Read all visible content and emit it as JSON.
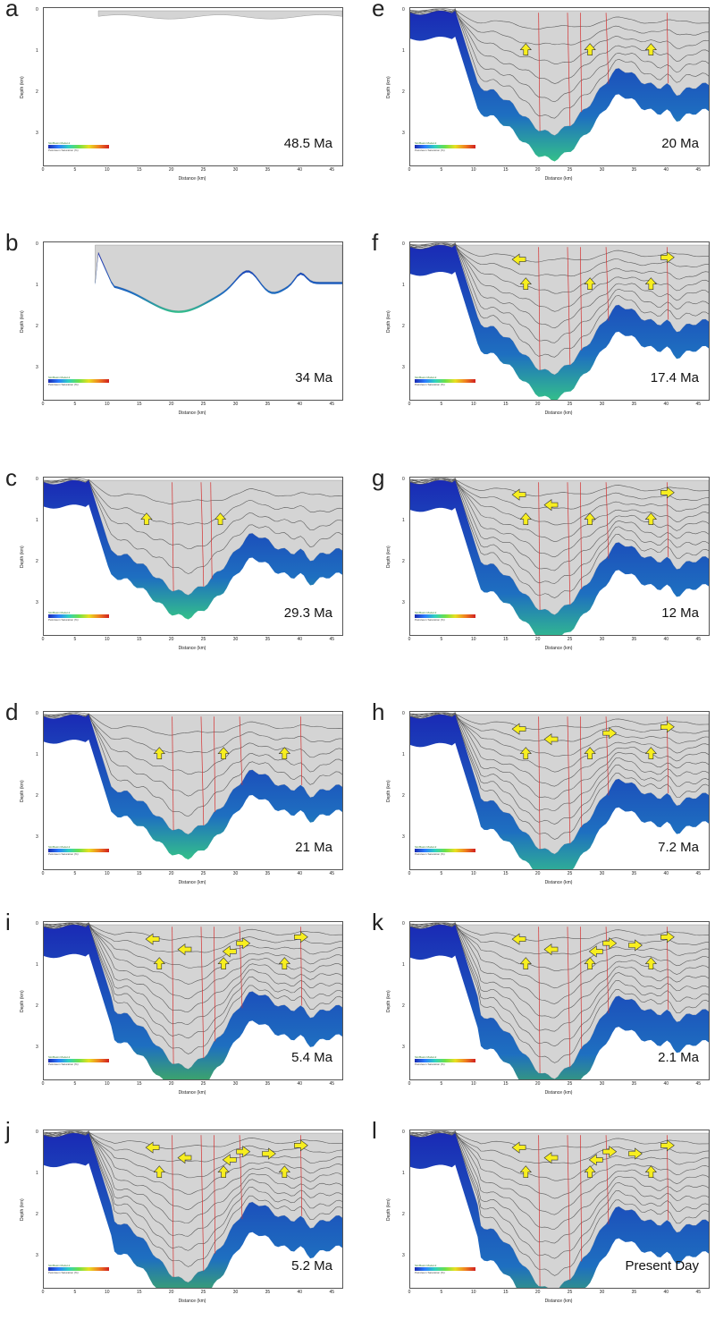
{
  "figure": {
    "x_axis_label": "Distance (km)",
    "y_axis_label": "Depth (km)",
    "x_ticks": [
      "0",
      "5",
      "10",
      "15",
      "20",
      "25",
      "30",
      "35",
      "40",
      "45"
    ],
    "y_ticks": [
      "0",
      "1",
      "2",
      "3"
    ],
    "legend": {
      "model_name": "SimBasin Model-2",
      "unit": "Petroleum Saturation (%)"
    },
    "colors": {
      "sediment_fill": "#d4d4d4",
      "basement": "#1a2ab5",
      "deep_basement": "#34c08a",
      "fault": "#d53030",
      "arrow_fill": "#f7ee1f",
      "arrow_stroke": "#333333"
    }
  },
  "panels": [
    {
      "letter": "a",
      "age": "48.5 Ma",
      "stage": 0
    },
    {
      "letter": "b",
      "age": "34 Ma",
      "stage": 1
    },
    {
      "letter": "c",
      "age": "29.3 Ma",
      "stage": 2
    },
    {
      "letter": "d",
      "age": "21 Ma",
      "stage": 3
    },
    {
      "letter": "i",
      "age": "5.4 Ma",
      "stage": 8
    },
    {
      "letter": "j",
      "age": "5.2 Ma",
      "stage": 9
    },
    {
      "letter": "e",
      "age": "20 Ma",
      "stage": 4
    },
    {
      "letter": "f",
      "age": "17.4 Ma",
      "stage": 5
    },
    {
      "letter": "g",
      "age": "12 Ma",
      "stage": 6
    },
    {
      "letter": "h",
      "age": "7.2 Ma",
      "stage": 7
    },
    {
      "letter": "k",
      "age": "2.1 Ma",
      "stage": 10
    },
    {
      "letter": "l",
      "age": "Present Day",
      "stage": 11
    }
  ]
}
